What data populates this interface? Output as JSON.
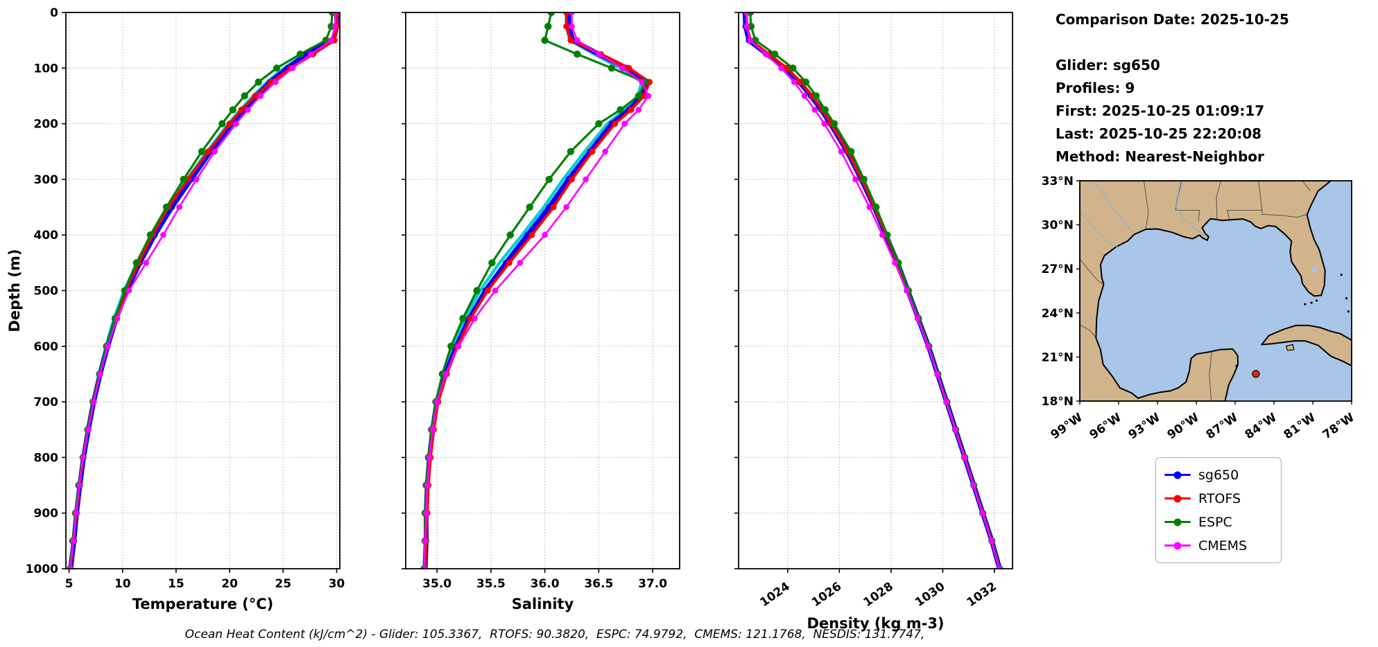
{
  "info": {
    "comparison_date": "Comparison Date: 2025-10-25",
    "glider": "Glider: sg650",
    "profiles": "Profiles: 9",
    "first": "First: 2025-10-25 01:09:17",
    "last": "Last: 2025-10-25 22:20:08",
    "method": "Method: Nearest-Neighbor"
  },
  "caption": "Ocean Heat Content (kJ/cm^2) - Glider: 105.3367,  RTOFS: 90.3820,  ESPC: 74.9792,  CMEMS: 121.1768,  NESDIS: 131.7747,",
  "chart_data": {
    "type": "line",
    "title": "",
    "grid": "dotted",
    "depth_axis": {
      "label": "Depth (m)",
      "min": 0,
      "max": 1000,
      "ticks": [
        0,
        100,
        200,
        300,
        400,
        500,
        600,
        700,
        800,
        900,
        1000
      ]
    },
    "depths": [
      0,
      25,
      50,
      75,
      100,
      125,
      150,
      175,
      200,
      250,
      300,
      350,
      400,
      450,
      500,
      550,
      600,
      650,
      700,
      750,
      800,
      850,
      900,
      950,
      1000
    ],
    "plots": [
      {
        "id": "temperature",
        "xlabel": "Temperature (°C)",
        "xmin": 4.7,
        "xmax": 30.3,
        "ticks": [
          5,
          10,
          15,
          20,
          25,
          30
        ],
        "tick_labels": [
          "5",
          "10",
          "15",
          "20",
          "25",
          "30"
        ],
        "rotate_ticks": false,
        "key": "temperature"
      },
      {
        "id": "salinity",
        "xlabel": "Salinity",
        "xmin": 34.71,
        "xmax": 37.25,
        "ticks": [
          35.0,
          35.5,
          36.0,
          36.5,
          37.0
        ],
        "tick_labels": [
          "35.0",
          "35.5",
          "36.0",
          "36.5",
          "37.0"
        ],
        "rotate_ticks": false,
        "key": "salinity"
      },
      {
        "id": "density",
        "xlabel": "Density (kg m-3)",
        "xmin": 1022.1,
        "xmax": 1032.7,
        "ticks": [
          1024,
          1026,
          1028,
          1030,
          1032
        ],
        "tick_labels": [
          "1024",
          "1026",
          "1028",
          "1030",
          "1032"
        ],
        "rotate_ticks": true,
        "key": "density"
      }
    ],
    "series": [
      {
        "name": "NESDIS",
        "color": "#00D0D0",
        "lw": 4.5,
        "marker": 0,
        "in_legend": false,
        "temperature": [
          30.1,
          30.05,
          29.7,
          27.0,
          25.1,
          23.5,
          22.2,
          21.0,
          19.9,
          17.9,
          16.0,
          14.2,
          12.7,
          11.35,
          10.15,
          9.2,
          8.45,
          7.8,
          7.2,
          6.7,
          6.28,
          5.92,
          5.62,
          5.38,
          5.08
        ],
        "salinity": [
          36.2,
          36.2,
          36.23,
          36.46,
          36.7,
          36.9,
          36.86,
          36.74,
          36.58,
          36.37,
          36.17,
          35.99,
          35.79,
          35.58,
          35.4,
          35.26,
          35.15,
          35.06,
          34.99,
          34.95,
          34.93,
          34.91,
          34.9,
          34.89,
          34.88
        ],
        "density": [
          1022.32,
          1022.34,
          1022.47,
          1023.17,
          1023.87,
          1024.42,
          1024.87,
          1025.27,
          1025.62,
          1026.27,
          1026.82,
          1027.32,
          1027.78,
          1028.23,
          1028.63,
          1029.03,
          1029.43,
          1029.78,
          1030.13,
          1030.48,
          1030.83,
          1031.18,
          1031.53,
          1031.88,
          1032.18
        ]
      },
      {
        "name": "sg650",
        "color": "#0000FF",
        "lw": 7,
        "marker": 4.5,
        "in_legend": true,
        "temperature": [
          30.0,
          30.0,
          29.7,
          27.2,
          25.4,
          23.8,
          22.5,
          21.3,
          20.2,
          18.2,
          16.4,
          14.6,
          13.0,
          11.6,
          10.4,
          9.4,
          8.6,
          7.9,
          7.3,
          6.8,
          6.35,
          6.0,
          5.7,
          5.45,
          5.15
        ],
        "salinity": [
          36.22,
          36.22,
          36.26,
          36.5,
          36.76,
          36.95,
          36.9,
          36.78,
          36.62,
          36.42,
          36.22,
          36.04,
          35.84,
          35.64,
          35.45,
          35.3,
          35.18,
          35.08,
          35.0,
          34.96,
          34.93,
          34.91,
          34.9,
          34.9,
          34.89
        ],
        "density": [
          1022.35,
          1022.37,
          1022.5,
          1023.2,
          1023.9,
          1024.45,
          1024.9,
          1025.3,
          1025.65,
          1026.3,
          1026.85,
          1027.35,
          1027.8,
          1028.25,
          1028.65,
          1029.05,
          1029.45,
          1029.8,
          1030.15,
          1030.5,
          1030.85,
          1031.2,
          1031.55,
          1031.9,
          1032.2
        ]
      },
      {
        "name": "RTOFS",
        "color": "#FF0000",
        "lw": 4,
        "marker": 4.5,
        "in_legend": true,
        "temperature": [
          30.05,
          30.0,
          29.8,
          27.8,
          25.7,
          23.9,
          22.4,
          21.1,
          20.0,
          18.0,
          16.1,
          14.3,
          12.8,
          11.5,
          10.3,
          9.35,
          8.55,
          7.85,
          7.25,
          6.75,
          6.3,
          5.95,
          5.65,
          5.4,
          5.1
        ],
        "salinity": [
          36.2,
          36.2,
          36.24,
          36.52,
          36.78,
          36.97,
          36.92,
          36.8,
          36.65,
          36.44,
          36.25,
          36.08,
          35.88,
          35.67,
          35.47,
          35.31,
          35.19,
          35.09,
          35.01,
          34.97,
          34.94,
          34.92,
          34.91,
          34.9,
          34.89
        ],
        "density": [
          1022.4,
          1022.42,
          1022.56,
          1023.27,
          1023.97,
          1024.5,
          1024.95,
          1025.34,
          1025.68,
          1026.32,
          1026.87,
          1027.36,
          1027.81,
          1028.26,
          1028.66,
          1029.06,
          1029.45,
          1029.8,
          1030.15,
          1030.5,
          1030.85,
          1031.2,
          1031.55,
          1031.9,
          1032.2
        ]
      },
      {
        "name": "ESPC",
        "color": "#008000",
        "lw": 3.2,
        "marker": 5.2,
        "in_legend": true,
        "temperature": [
          29.6,
          29.5,
          29.0,
          26.6,
          24.4,
          22.7,
          21.4,
          20.3,
          19.3,
          17.4,
          15.7,
          14.1,
          12.6,
          11.3,
          10.2,
          9.3,
          8.5,
          7.85,
          7.25,
          6.75,
          6.3,
          5.9,
          5.6,
          5.35,
          5.1
        ],
        "salinity": [
          36.06,
          36.03,
          36.0,
          36.3,
          36.62,
          36.93,
          36.87,
          36.7,
          36.5,
          36.24,
          36.04,
          35.86,
          35.68,
          35.51,
          35.37,
          35.24,
          35.13,
          35.05,
          34.99,
          34.95,
          34.92,
          34.9,
          34.89,
          34.89,
          34.88
        ],
        "density": [
          1022.55,
          1022.58,
          1022.75,
          1023.5,
          1024.2,
          1024.7,
          1025.1,
          1025.45,
          1025.8,
          1026.45,
          1026.95,
          1027.42,
          1027.85,
          1028.28,
          1028.67,
          1029.06,
          1029.46,
          1029.81,
          1030.16,
          1030.5,
          1030.85,
          1031.2,
          1031.55,
          1031.9,
          1032.2
        ]
      },
      {
        "name": "CMEMS",
        "color": "#FF00FF",
        "lw": 2.6,
        "marker": 4.3,
        "in_legend": true,
        "temperature": [
          29.9,
          29.85,
          29.5,
          27.6,
          25.9,
          24.3,
          22.9,
          21.7,
          20.6,
          18.6,
          16.9,
          15.3,
          13.8,
          12.2,
          10.6,
          9.5,
          8.6,
          7.9,
          7.3,
          6.8,
          6.3,
          5.95,
          5.65,
          5.4,
          5.1
        ],
        "salinity": [
          36.25,
          36.25,
          36.3,
          36.5,
          36.72,
          36.9,
          36.96,
          36.87,
          36.74,
          36.56,
          36.38,
          36.2,
          36.0,
          35.77,
          35.54,
          35.35,
          35.2,
          35.08,
          35.0,
          34.96,
          34.93,
          34.91,
          34.9,
          34.89,
          34.88
        ],
        "density": [
          1022.4,
          1022.42,
          1022.55,
          1023.15,
          1023.75,
          1024.25,
          1024.65,
          1025.05,
          1025.42,
          1026.07,
          1026.62,
          1027.16,
          1027.66,
          1028.15,
          1028.6,
          1029.02,
          1029.43,
          1029.79,
          1030.14,
          1030.49,
          1030.84,
          1031.19,
          1031.54,
          1031.89,
          1032.19
        ]
      }
    ],
    "legend_labels": [
      "sg650",
      "RTOFS",
      "ESPC",
      "CMEMS"
    ]
  },
  "map": {
    "extent": {
      "lon_west": 99,
      "lon_east": 78,
      "lat_north": 33,
      "lat_south": 18
    },
    "lat_ticks": [
      {
        "value": 33,
        "label": "33°N"
      },
      {
        "value": 30,
        "label": "30°N"
      },
      {
        "value": 27,
        "label": "27°N"
      },
      {
        "value": 24,
        "label": "24°N"
      },
      {
        "value": 21,
        "label": "21°N"
      },
      {
        "value": 18,
        "label": "18°N"
      }
    ],
    "lon_ticks": [
      {
        "value": 99,
        "label": "99°W"
      },
      {
        "value": 96,
        "label": "96°W"
      },
      {
        "value": 93,
        "label": "93°W"
      },
      {
        "value": 90,
        "label": "90°W"
      },
      {
        "value": 87,
        "label": "87°W"
      },
      {
        "value": 84,
        "label": "84°W"
      },
      {
        "value": 81,
        "label": "81°W"
      },
      {
        "value": 78,
        "label": "78°W"
      }
    ],
    "land_color": "#D2B48C",
    "water_color": "#A9C6E8",
    "coast_color": "#000000",
    "marker": {
      "lon_w": 85.4,
      "lat_n": 19.85,
      "color": "#D03020"
    }
  }
}
